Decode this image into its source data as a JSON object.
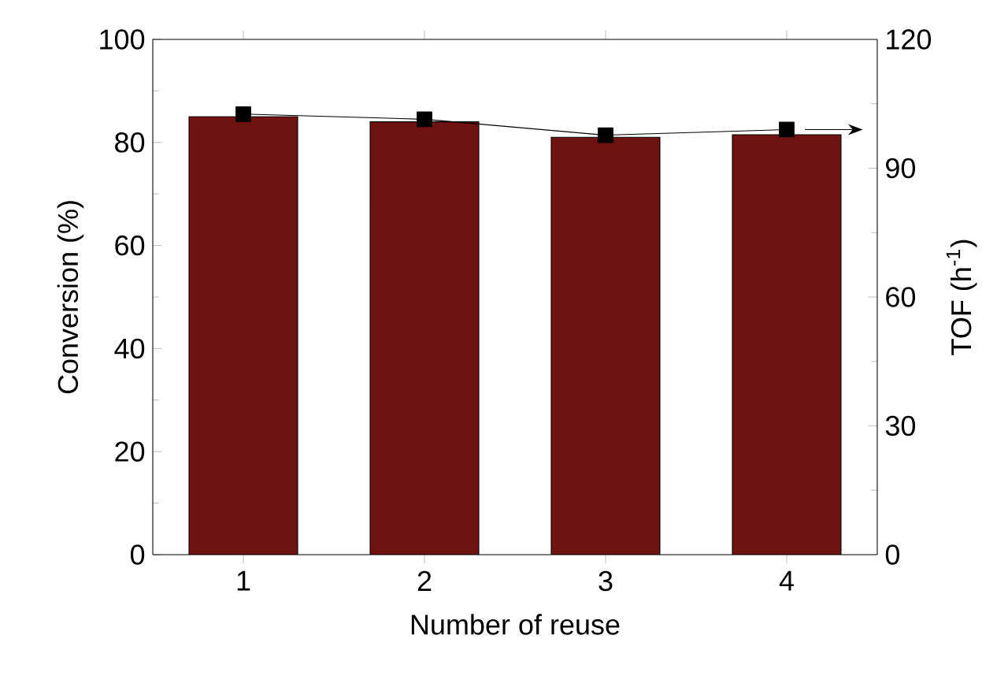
{
  "chart_data": {
    "type": "bar",
    "xlabel": "Number of reuse",
    "ylabel": "Conversion (%)",
    "y2label": "TOF (h$^{-1}$)",
    "categories": [
      "1",
      "2",
      "3",
      "4"
    ],
    "series": [
      {
        "color": "#6e1212",
        "values": [
          85,
          84,
          81,
          81.5
        ]
      },
      {
        "type": "line",
        "axis": "y2",
        "color": "#000000",
        "marker": "square",
        "values": [
          102.6,
          101.4,
          97.7,
          99.0
        ]
      }
    ],
    "ylim": [
      0,
      100
    ],
    "yticks": [
      0,
      20,
      40,
      60,
      80,
      100
    ],
    "y2lim": [
      0,
      120
    ],
    "y2ticks": [
      0,
      30,
      60,
      90,
      120
    ],
    "grid": false
  }
}
